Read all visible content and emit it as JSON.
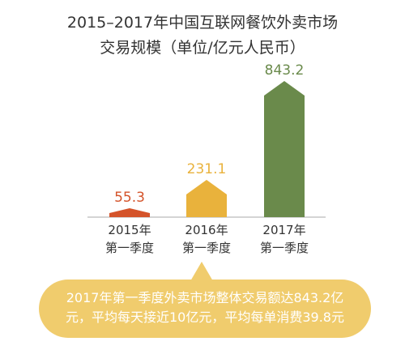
{
  "chart_data": {
    "type": "bar",
    "title_lines": [
      "2015–2017年中国互联网餐饮外卖市场",
      "交易规模（单位/亿元人民币）"
    ],
    "categories": [
      [
        "2015年",
        "第一季度"
      ],
      [
        "2016年",
        "第一季度"
      ],
      [
        "2017年",
        "第一季度"
      ]
    ],
    "values": [
      55.3,
      231.1,
      843.2
    ],
    "value_labels": [
      "55.3",
      "231.1",
      "843.2"
    ],
    "colors": [
      "#d4532a",
      "#e9b23c",
      "#6a8a4b"
    ],
    "bar_shape": "arrow-top",
    "ylabel": "",
    "xlabel": ""
  },
  "note": {
    "lines": [
      "2017年第一季度外卖市场整体交易额达843.2亿",
      "元，平均每天接近10亿元，平均每单消费39.8元"
    ],
    "color": "#f0cc6d"
  }
}
